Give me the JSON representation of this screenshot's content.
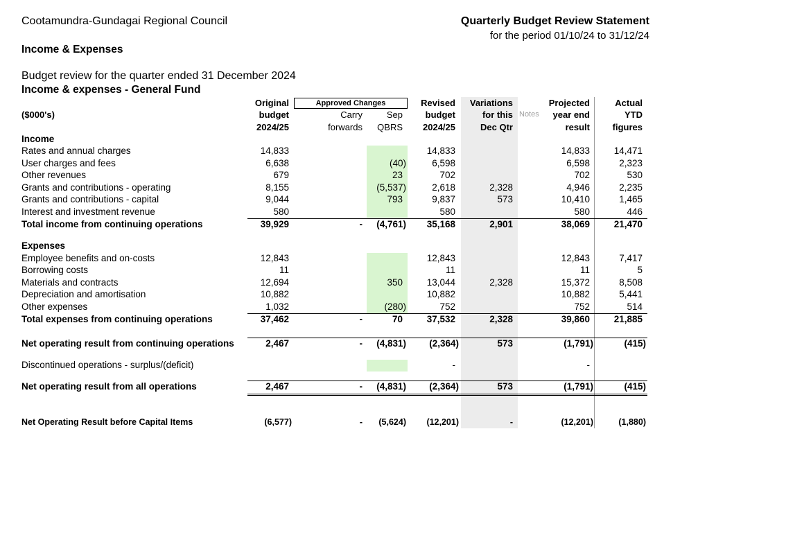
{
  "header": {
    "council": "Cootamundra-Gundagai Regional Council",
    "statement_title": "Quarterly Budget Review Statement",
    "period": "for the period 01/10/24 to 31/12/24",
    "section_title": "Income & Expenses",
    "review_line": "Budget review for the quarter ended 31 December 2024",
    "fund_title": "Income & expenses - General Fund"
  },
  "columns": {
    "units": "($000's)",
    "approved_changes": "Approved Changes",
    "original_1": "Original",
    "original_2": "budget",
    "original_3": "2024/25",
    "carry_1": "Carry",
    "carry_2": "forwards",
    "sep_1": "Sep",
    "sep_2": "QBRS",
    "revised_1": "Revised",
    "revised_2": "budget",
    "revised_3": "2024/25",
    "var_1": "Variations",
    "var_2": "for this",
    "var_3": "Dec  Qtr",
    "notes": "Notes",
    "proj_1": "Projected",
    "proj_2": "year end",
    "proj_3": "result",
    "actual_1": "Actual",
    "actual_2": "YTD",
    "actual_3": "figures"
  },
  "income": {
    "heading": "Income",
    "rows": [
      {
        "label": "Rates and annual charges",
        "orig": "14,833",
        "carry": "",
        "sep": "",
        "rev": "14,833",
        "var": "",
        "proj": "14,833",
        "act": "14,471"
      },
      {
        "label": "User charges and fees",
        "orig": "6,638",
        "carry": "",
        "sep": "(40)",
        "rev": "6,598",
        "var": "",
        "proj": "6,598",
        "act": "2,323"
      },
      {
        "label": "Other revenues",
        "orig": "679",
        "carry": "",
        "sep": "23",
        "rev": "702",
        "var": "",
        "proj": "702",
        "act": "530"
      },
      {
        "label": "Grants and contributions - operating",
        "orig": "8,155",
        "carry": "",
        "sep": "(5,537)",
        "rev": "2,618",
        "var": "2,328",
        "proj": "4,946",
        "act": "2,235"
      },
      {
        "label": "Grants and contributions - capital",
        "orig": "9,044",
        "carry": "",
        "sep": "793",
        "rev": "9,837",
        "var": "573",
        "proj": "10,410",
        "act": "1,465"
      },
      {
        "label": "Interest and investment revenue",
        "orig": "580",
        "carry": "",
        "sep": "",
        "rev": "580",
        "var": "",
        "proj": "580",
        "act": "446"
      }
    ],
    "total": {
      "label": "Total income from continuing operations",
      "orig": "39,929",
      "carry": "-",
      "sep": "(4,761)",
      "rev": "35,168",
      "var": "2,901",
      "proj": "38,069",
      "act": "21,470"
    }
  },
  "expenses": {
    "heading": "Expenses",
    "rows": [
      {
        "label": "Employee benefits and on-costs",
        "orig": "12,843",
        "carry": "",
        "sep": "",
        "rev": "12,843",
        "var": "",
        "proj": "12,843",
        "act": "7,417"
      },
      {
        "label": "Borrowing costs",
        "orig": "11",
        "carry": "",
        "sep": "",
        "rev": "11",
        "var": "",
        "proj": "11",
        "act": "5"
      },
      {
        "label": "Materials and contracts",
        "orig": "12,694",
        "carry": "",
        "sep": "350",
        "rev": "13,044",
        "var": "2,328",
        "proj": "15,372",
        "act": "8,508"
      },
      {
        "label": "Depreciation and amortisation",
        "orig": "10,882",
        "carry": "",
        "sep": "",
        "rev": "10,882",
        "var": "",
        "proj": "10,882",
        "act": "5,441"
      },
      {
        "label": "Other expenses",
        "orig": "1,032",
        "carry": "",
        "sep": "(280)",
        "rev": "752",
        "var": "",
        "proj": "752",
        "act": "514"
      }
    ],
    "total": {
      "label": "Total expenses from continuing operations",
      "orig": "37,462",
      "carry": "-",
      "sep": "70",
      "rev": "37,532",
      "var": "2,328",
      "proj": "39,860",
      "act": "21,885"
    }
  },
  "net_continuing": {
    "label": "Net operating result from continuing operations",
    "orig": "2,467",
    "carry": "-",
    "sep": "(4,831)",
    "rev": "(2,364)",
    "var": "573",
    "proj": "(1,791)",
    "act": "(415)"
  },
  "discontinued": {
    "label": "Discontinued operations - surplus/(deficit)",
    "orig": "",
    "carry": "",
    "sep": "",
    "rev": "-",
    "var": "",
    "proj": "-",
    "act": ""
  },
  "net_all": {
    "label": "Net operating result from all operations",
    "orig": "2,467",
    "carry": "-",
    "sep": "(4,831)",
    "rev": "(2,364)",
    "var": "573",
    "proj": "(1,791)",
    "act": "(415)"
  },
  "before_capital": {
    "label": "Net Operating Result before Capital Items",
    "orig": "(6,577)",
    "carry": "-",
    "sep": "(5,624)",
    "rev": "(12,201)",
    "var": "-",
    "proj": "(12,201)",
    "act": "(1,880)"
  }
}
